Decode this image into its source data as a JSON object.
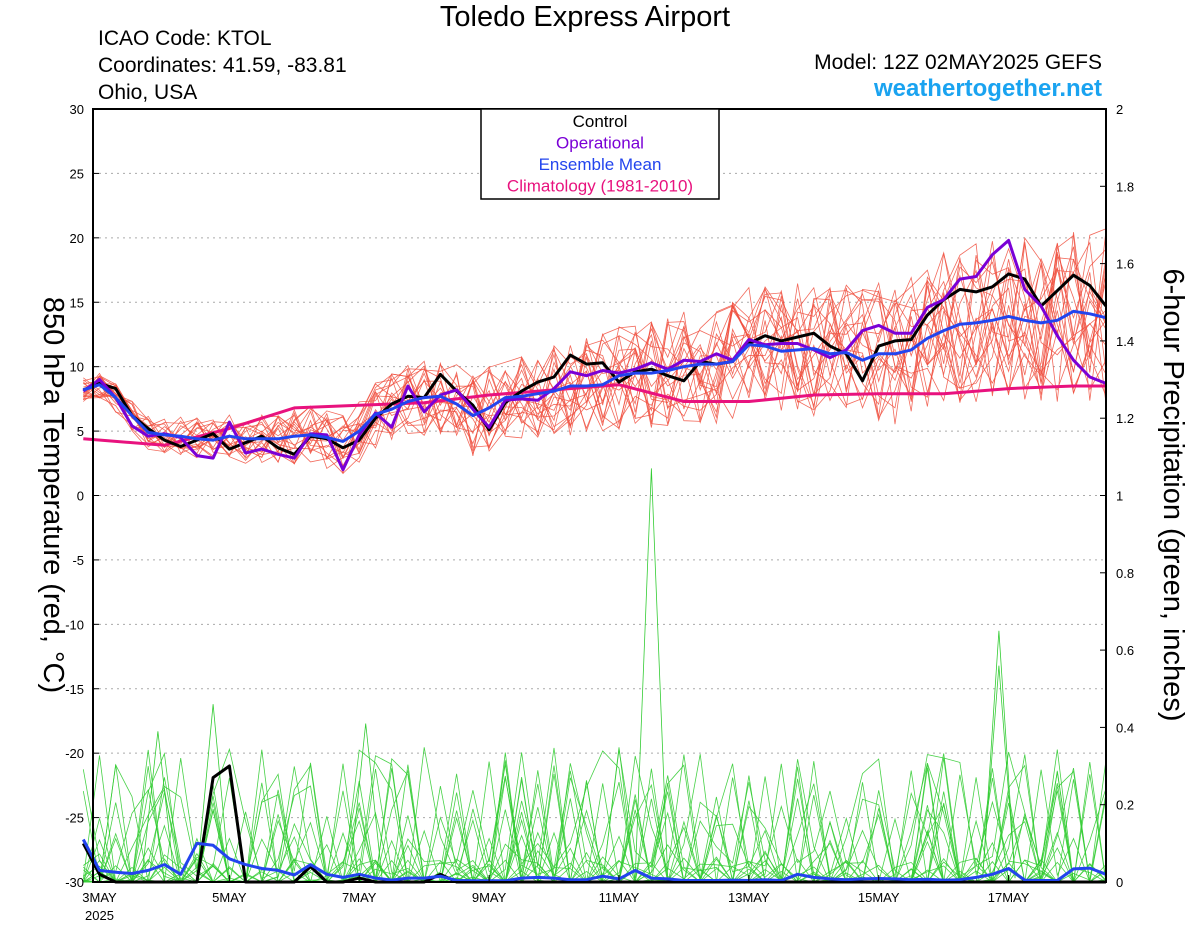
{
  "header": {
    "title": "Toledo Express Airport",
    "icao": "ICAO Code: KTOL",
    "coords": "Coordinates: 41.59, -83.81",
    "region": "Ohio, USA",
    "model": "Model: 12Z 02MAY2025 GEFS",
    "site": "weathertogether.net"
  },
  "colors": {
    "control": "#000000",
    "operational": "#7a00d6",
    "ensemble_mean": "#2244ee",
    "climatology": "#e8127e",
    "members_temp": "#f05040",
    "members_precip": "#33cc33",
    "site": "#1aa3f0"
  },
  "chart_data": {
    "type": "line",
    "title": "Toledo Express Airport",
    "ylabel": "850 hPa Temperature (red, °C)",
    "y2label": "6-hour Precipitation (green, inches)",
    "ylim": [
      -30,
      30
    ],
    "y2lim": [
      0,
      2
    ],
    "x_unit": "days since 3MAY 2025 00Z",
    "xlim": [
      -0.1,
      15.5
    ],
    "grid": true,
    "legend_position": "top-center",
    "yticks": [
      "30",
      "25",
      "20",
      "15",
      "10",
      "5",
      "0",
      "-5",
      "-10",
      "-15",
      "-20",
      "-25",
      "-30"
    ],
    "y2ticks": [
      "2",
      "1.8",
      "1.6",
      "1.4",
      "1.2",
      "1",
      "0.8",
      "0.6",
      "0.4",
      "0.2",
      "0"
    ],
    "xticks": [
      {
        "label": "3MAY",
        "sub": "2025",
        "x": 0
      },
      {
        "label": "5MAY",
        "sub": "",
        "x": 2
      },
      {
        "label": "7MAY",
        "sub": "",
        "x": 4
      },
      {
        "label": "9MAY",
        "sub": "",
        "x": 6
      },
      {
        "label": "11MAY",
        "sub": "",
        "x": 8
      },
      {
        "label": "13MAY",
        "sub": "",
        "x": 10
      },
      {
        "label": "15MAY",
        "sub": "",
        "x": 12
      },
      {
        "label": "17MAY",
        "sub": "",
        "x": 14
      }
    ],
    "legend": [
      {
        "name": "Control",
        "color": "#000000"
      },
      {
        "name": "Operational",
        "color": "#7a00d6"
      },
      {
        "name": "Ensemble Mean",
        "color": "#2244ee"
      },
      {
        "name": "Climatology (1981-2010)",
        "color": "#e8127e"
      }
    ],
    "series": [
      {
        "name": "Climatology (1981-2010)",
        "axis": "left",
        "x": [
          -0.25,
          1,
          2,
          3,
          4,
          5,
          6,
          7,
          8,
          9,
          10,
          11,
          12,
          13,
          14,
          15,
          15.5
        ],
        "y": [
          4.4,
          3.9,
          5.2,
          6.8,
          7.0,
          7.2,
          7.8,
          8.2,
          8.6,
          7.3,
          7.3,
          7.8,
          7.9,
          7.9,
          8.3,
          8.5,
          8.5
        ]
      },
      {
        "name": "Control",
        "axis": "left",
        "x": [
          -0.25,
          0,
          0.25,
          0.5,
          0.75,
          1,
          1.25,
          1.5,
          1.75,
          2,
          2.25,
          2.5,
          2.75,
          3,
          3.25,
          3.5,
          3.75,
          4,
          4.25,
          4.5,
          4.75,
          5,
          5.25,
          5.5,
          5.75,
          6,
          6.25,
          6.5,
          6.75,
          7,
          7.25,
          7.5,
          7.75,
          8,
          8.25,
          8.5,
          8.75,
          9,
          9.25,
          9.5,
          9.75,
          10,
          10.25,
          10.5,
          10.75,
          11,
          11.25,
          11.5,
          11.75,
          12,
          12.25,
          12.5,
          12.75,
          13,
          13.25,
          13.5,
          13.75,
          14,
          14.25,
          14.5,
          14.75,
          15,
          15.25,
          15.5
        ],
        "y": [
          8.2,
          8.7,
          8.3,
          6.2,
          5.2,
          4.3,
          3.8,
          4.3,
          4.8,
          3.6,
          4.1,
          4.6,
          3.7,
          3.2,
          4.6,
          4.4,
          3.7,
          4.3,
          6.0,
          7.1,
          7.7,
          7.6,
          9.4,
          8.1,
          7.0,
          5.1,
          7.2,
          8.1,
          8.8,
          9.2,
          10.9,
          10.2,
          10.3,
          8.8,
          9.6,
          9.8,
          9.3,
          8.9,
          10.4,
          10.2,
          10.4,
          11.8,
          12.4,
          12.0,
          12.3,
          12.6,
          11.6,
          11.0,
          8.9,
          11.6,
          12.0,
          12.1,
          14.0,
          15.2,
          16.0,
          15.8,
          16.2,
          17.2,
          16.8,
          14.7,
          15.9,
          17.1,
          16.3,
          14.7
        ]
      },
      {
        "name": "Operational",
        "axis": "left",
        "x": [
          -0.25,
          0,
          0.25,
          0.5,
          0.75,
          1,
          1.25,
          1.5,
          1.75,
          2,
          2.25,
          2.5,
          2.75,
          3,
          3.25,
          3.5,
          3.75,
          4,
          4.25,
          4.5,
          4.75,
          5,
          5.25,
          5.5,
          5.75,
          6,
          6.25,
          6.5,
          6.75,
          7,
          7.25,
          7.5,
          7.75,
          8,
          8.25,
          8.5,
          8.75,
          9,
          9.25,
          9.5,
          9.75,
          10,
          10.25,
          10.5,
          10.75,
          11,
          11.25,
          11.5,
          11.75,
          12,
          12.25,
          12.5,
          12.75,
          13,
          13.25,
          13.5,
          13.75,
          14,
          14.25,
          14.5,
          14.75,
          15,
          15.25,
          15.5
        ],
        "y": [
          8.1,
          9.0,
          7.6,
          5.4,
          4.6,
          4.8,
          4.5,
          3.1,
          2.9,
          5.7,
          3.3,
          3.6,
          3.2,
          2.9,
          4.8,
          4.7,
          2.0,
          4.7,
          6.4,
          5.3,
          8.5,
          6.5,
          7.8,
          8.2,
          6.7,
          5.3,
          7.4,
          7.5,
          7.4,
          8.3,
          9.6,
          9.3,
          9.7,
          9.5,
          9.8,
          10.3,
          9.8,
          10.5,
          10.4,
          11.0,
          10.5,
          12.1,
          11.7,
          11.8,
          11.8,
          11.3,
          10.7,
          11.3,
          12.8,
          13.2,
          12.6,
          12.6,
          14.6,
          15.2,
          16.8,
          17.0,
          18.7,
          19.8,
          16.0,
          14.7,
          12.4,
          10.5,
          9.2,
          8.7
        ]
      },
      {
        "name": "Ensemble Mean",
        "axis": "left",
        "x": [
          -0.25,
          0,
          0.25,
          0.5,
          0.75,
          1,
          1.25,
          1.5,
          1.75,
          2,
          2.25,
          2.5,
          2.75,
          3,
          3.25,
          3.5,
          3.75,
          4,
          4.25,
          4.5,
          4.75,
          5,
          5.25,
          5.5,
          5.75,
          6,
          6.25,
          6.5,
          6.75,
          7,
          7.25,
          7.5,
          7.75,
          8,
          8.25,
          8.5,
          8.75,
          9,
          9.25,
          9.5,
          9.75,
          10,
          10.25,
          10.5,
          10.75,
          11,
          11.25,
          11.5,
          11.75,
          12,
          12.25,
          12.5,
          12.75,
          13,
          13.25,
          13.5,
          13.75,
          14,
          14.25,
          14.5,
          14.75,
          15,
          15.25,
          15.5
        ],
        "y": [
          8.2,
          8.6,
          7.6,
          6.2,
          4.9,
          4.7,
          4.6,
          4.4,
          4.3,
          4.6,
          4.4,
          4.4,
          4.4,
          4.6,
          4.7,
          4.5,
          4.2,
          5.0,
          6.3,
          6.7,
          7.3,
          7.6,
          7.7,
          7.1,
          6.2,
          6.8,
          7.6,
          7.7,
          7.9,
          8.1,
          8.5,
          8.5,
          8.6,
          9.3,
          9.5,
          9.5,
          9.7,
          10.0,
          10.2,
          10.2,
          10.4,
          11.7,
          11.6,
          11.2,
          11.3,
          11.4,
          11.0,
          11.1,
          10.5,
          11.0,
          11.0,
          11.3,
          12.2,
          12.8,
          13.3,
          13.4,
          13.6,
          13.9,
          13.6,
          13.4,
          13.6,
          14.3,
          14.1,
          13.8
        ]
      },
      {
        "name": "Control",
        "axis": "right",
        "x": [
          -0.25,
          0,
          0.25,
          0.5,
          0.75,
          1,
          1.25,
          1.5,
          1.75,
          2,
          2.25,
          2.5,
          2.75,
          3,
          3.25,
          3.5,
          3.75,
          4,
          4.25,
          4.5,
          4.75,
          5,
          5.25,
          5.5,
          5.75,
          6,
          6.25,
          6.5,
          6.75,
          7,
          7.25,
          7.5,
          7.75,
          8,
          8.25,
          8.5,
          8.75,
          9,
          9.25,
          9.5,
          9.75,
          10,
          10.25,
          10.5,
          10.75,
          11,
          11.25,
          11.5,
          11.75,
          12,
          12.25,
          12.5,
          12.75,
          13,
          13.25,
          13.5,
          13.75,
          14,
          14.25,
          14.5,
          14.75,
          15,
          15.25,
          15.5
        ],
        "y": [
          0.1,
          0.02,
          0,
          0,
          0,
          0,
          0,
          0,
          0.27,
          0.3,
          0,
          0,
          0,
          0,
          0.04,
          0,
          0,
          0.01,
          0,
          0,
          0,
          0,
          0.02,
          0,
          0,
          0,
          0,
          0,
          0,
          0,
          0,
          0,
          0,
          0,
          0,
          0,
          0,
          0,
          0,
          0,
          0,
          0,
          0,
          0,
          0,
          0,
          0,
          0,
          0,
          0,
          0,
          0,
          0,
          0,
          0,
          0,
          0,
          0,
          0,
          0,
          0,
          0,
          0,
          0
        ]
      },
      {
        "name": "Ensemble Mean",
        "axis": "right",
        "x": [
          -0.25,
          0,
          0.25,
          0.5,
          0.75,
          1,
          1.25,
          1.5,
          1.75,
          2,
          2.25,
          2.5,
          2.75,
          3,
          3.25,
          3.5,
          3.75,
          4,
          4.25,
          4.5,
          4.75,
          5,
          5.25,
          5.5,
          5.75,
          6,
          6.25,
          6.5,
          6.75,
          7,
          7.25,
          7.5,
          7.75,
          8,
          8.25,
          8.5,
          8.75,
          9,
          9.25,
          9.5,
          9.75,
          10,
          10.25,
          10.5,
          10.75,
          11,
          11.25,
          11.5,
          11.75,
          12,
          12.25,
          12.5,
          12.75,
          13,
          13.25,
          13.5,
          13.75,
          14,
          14.25,
          14.5,
          14.75,
          15,
          15.25,
          15.5
        ],
        "y": [
          0.11,
          0.03,
          0.025,
          0.022,
          0.03,
          0.045,
          0.02,
          0.1,
          0.095,
          0.06,
          0.045,
          0.035,
          0.03,
          0.018,
          0.045,
          0.02,
          0.012,
          0.02,
          0.01,
          0.005,
          0.01,
          0.01,
          0.015,
          0.004,
          0.003,
          0.003,
          0.003,
          0.01,
          0.012,
          0.01,
          0.006,
          0.006,
          0.015,
          0.008,
          0.03,
          0.01,
          0.008,
          0.004,
          0.004,
          0.004,
          0.005,
          0.004,
          0.006,
          0.004,
          0.02,
          0.012,
          0.008,
          0.006,
          0.008,
          0.009,
          0.008,
          0.006,
          0.007,
          0.005,
          0.006,
          0.012,
          0.02,
          0.035,
          0.005,
          0.004,
          0.004,
          0.034,
          0.036,
          0.02
        ]
      }
    ]
  }
}
